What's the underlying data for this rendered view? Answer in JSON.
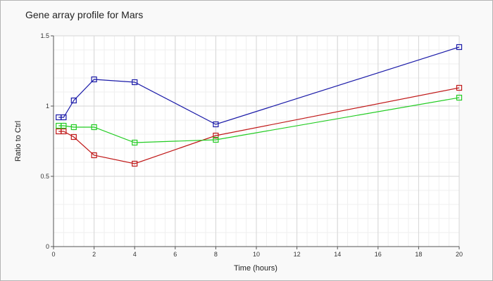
{
  "chart_data": {
    "type": "line",
    "title": "Gene array profile for Mars",
    "xlabel": "Time (hours)",
    "ylabel": "Ratio to Ctrl",
    "xlim": [
      0,
      20
    ],
    "ylim": [
      0,
      1.5
    ],
    "x_ticks": [
      0,
      2,
      4,
      6,
      8,
      10,
      12,
      14,
      16,
      18,
      20
    ],
    "x_tick_labels": [
      "0",
      "2",
      "4",
      "6",
      "8",
      "10",
      "12",
      "14",
      "16",
      "18",
      "20"
    ],
    "y_ticks": [
      0,
      0.5,
      1,
      1.5
    ],
    "y_tick_labels": [
      "0",
      "0.5",
      "1",
      "1.5"
    ],
    "grid": true,
    "legend": "none",
    "marker": "square",
    "x": [
      0.25,
      0.5,
      1,
      2,
      4,
      8,
      20
    ],
    "series": [
      {
        "color": "#1a1aa8",
        "values": [
          0.92,
          0.92,
          1.04,
          1.19,
          1.17,
          0.87,
          1.42
        ]
      },
      {
        "color": "#c01818",
        "values": [
          0.82,
          0.82,
          0.78,
          0.65,
          0.59,
          0.79,
          1.13
        ]
      },
      {
        "color": "#22cc22",
        "values": [
          0.86,
          0.86,
          0.85,
          0.85,
          0.74,
          0.76,
          1.06
        ]
      }
    ]
  }
}
